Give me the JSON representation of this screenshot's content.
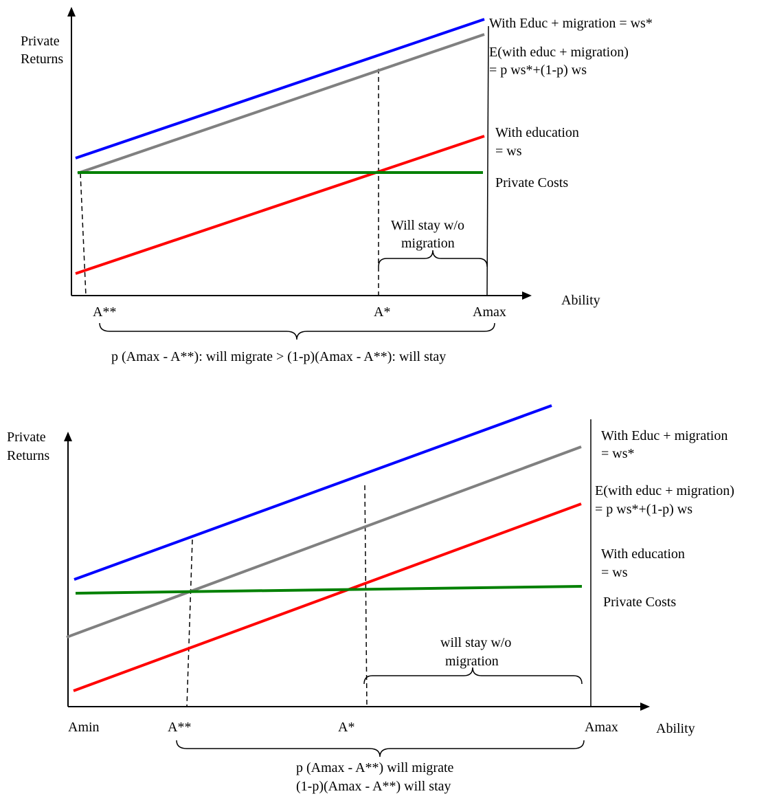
{
  "colors": {
    "migration_line": "#0000ff",
    "expected_line": "#808080",
    "education_line": "#ff0000",
    "costs_line": "#008000",
    "axis": "#000000"
  },
  "top": {
    "y_axis_label_1": "Private",
    "y_axis_label_2": "Returns",
    "x_axis_label": "Ability",
    "migration_label": "With Educ + migration = ws*",
    "expected_label_1": "E(with educ + migration)",
    "expected_label_2": "= p ws*+(1-p) ws",
    "education_label_1": "With education",
    "education_label_2": "= ws",
    "costs_label": "Private Costs",
    "stay_label_1": "Will stay w/o",
    "stay_label_2": "migration",
    "tick_a2": "A**",
    "tick_a1": "A*",
    "tick_amax": "Amax",
    "bottom_caption": "p (Amax - A**): will migrate > (1-p)(Amax - A**): will stay"
  },
  "bottom": {
    "y_axis_label_1": "Private",
    "y_axis_label_2": "Returns",
    "x_axis_label": "Ability",
    "migration_label_1": "With Educ + migration",
    "migration_label_2": "= ws*",
    "expected_label_1": "E(with educ + migration)",
    "expected_label_2": "= p ws*+(1-p) ws",
    "education_label_1": "With education",
    "education_label_2": "= ws",
    "costs_label": "Private Costs",
    "stay_label_1": "will stay w/o",
    "stay_label_2": "migration",
    "tick_amin": "Amin",
    "tick_a2": "A**",
    "tick_a1": "A*",
    "tick_amax": "Amax",
    "caption_1": "p (Amax - A**) will migrate",
    "caption_2": "(1-p)(Amax - A**) will stay"
  }
}
